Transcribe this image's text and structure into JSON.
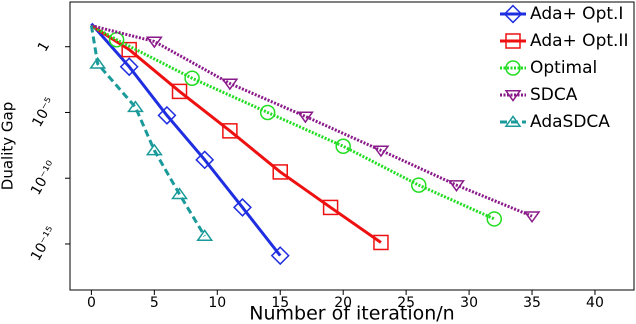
{
  "chart_data": {
    "type": "line",
    "log_y": true,
    "x_label": "Number of iteration/n",
    "y_label": "Duality Gap",
    "xlim": [
      -1.7,
      43.1
    ],
    "xticks": [
      0,
      5,
      10,
      15,
      20,
      25,
      30,
      35,
      40
    ],
    "ylim": [
      3.16e-19,
      2512
    ],
    "yticks": [
      1,
      {
        "value": 1e-05,
        "label": "10⁻⁵"
      },
      {
        "value": 1e-10,
        "label": "10⁻¹⁰"
      },
      {
        "value": 1e-15,
        "label": "10⁻¹⁵"
      }
    ],
    "legend": "top-right",
    "series": [
      {
        "name": "Ada+ Opt.I",
        "color": "#1f2ee0",
        "marker": "diamond",
        "dash": "solid",
        "x": [
          0,
          3,
          6,
          9,
          12,
          15
        ],
        "values": [
          56,
          0.03,
          6e-06,
          2.5e-09,
          6e-13,
          1.3e-16
        ]
      },
      {
        "name": "Ada+ Opt.II",
        "color": "#ee1111",
        "marker": "square",
        "dash": "solid",
        "x": [
          0,
          3,
          7,
          11,
          15,
          19,
          23
        ],
        "values": [
          40,
          0.6,
          0.0004,
          4e-07,
          3e-10,
          6e-13,
          1.3e-15
        ]
      },
      {
        "name": "Optimal",
        "color": "#22dd22",
        "marker": "circle",
        "dash": "dotted",
        "x": [
          0,
          2,
          8,
          14,
          20,
          26,
          32
        ],
        "values": [
          40,
          3.4,
          0.004,
          1e-05,
          2.7e-08,
          3e-11,
          8e-14
        ]
      },
      {
        "name": "SDCA",
        "color": "#8a1a8a",
        "marker": "triangle-down",
        "dash": "dotted",
        "x": [
          0,
          5,
          11,
          17,
          23,
          29,
          35
        ],
        "values": [
          40,
          2.5,
          0.0016,
          5e-06,
          1.3e-08,
          3e-11,
          1.3e-13
        ]
      },
      {
        "name": "AdaSDCA",
        "color": "#1a9a9a",
        "marker": "triangle-up",
        "dash": "dashed",
        "x": [
          0,
          0.5,
          3.5,
          5,
          7,
          9
        ],
        "values": [
          40,
          0.05,
          2.5e-05,
          1.3e-08,
          6e-12,
          4e-15
        ]
      }
    ]
  }
}
